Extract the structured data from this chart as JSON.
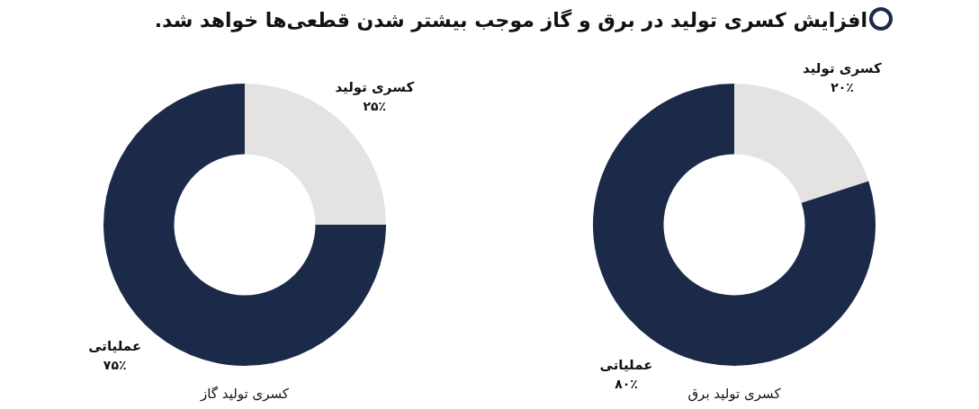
{
  "chart_data": [
    {
      "type": "donut",
      "title": "افزایش کسری تولید در برق و گاز موجب بیشتر شدن قطعی‌ها خواهد شد.",
      "xlabel": "کسری تولید گاز",
      "categories": [
        "کسری تولید",
        "عملیاتی"
      ],
      "values": [
        25,
        75
      ],
      "colors": [
        "#e4e3e1",
        "#1c2a4a"
      ],
      "value_labels": [
        "۲۵٪",
        "۷۵٪"
      ]
    },
    {
      "type": "donut",
      "xlabel": "کسری تولید برق",
      "categories": [
        "کسری تولید",
        "عملیاتی"
      ],
      "values": [
        20,
        80
      ],
      "colors": [
        "#e4e3e1",
        "#1c2a4a"
      ],
      "value_labels": [
        "۲۰٪",
        "۸۰٪"
      ]
    }
  ]
}
